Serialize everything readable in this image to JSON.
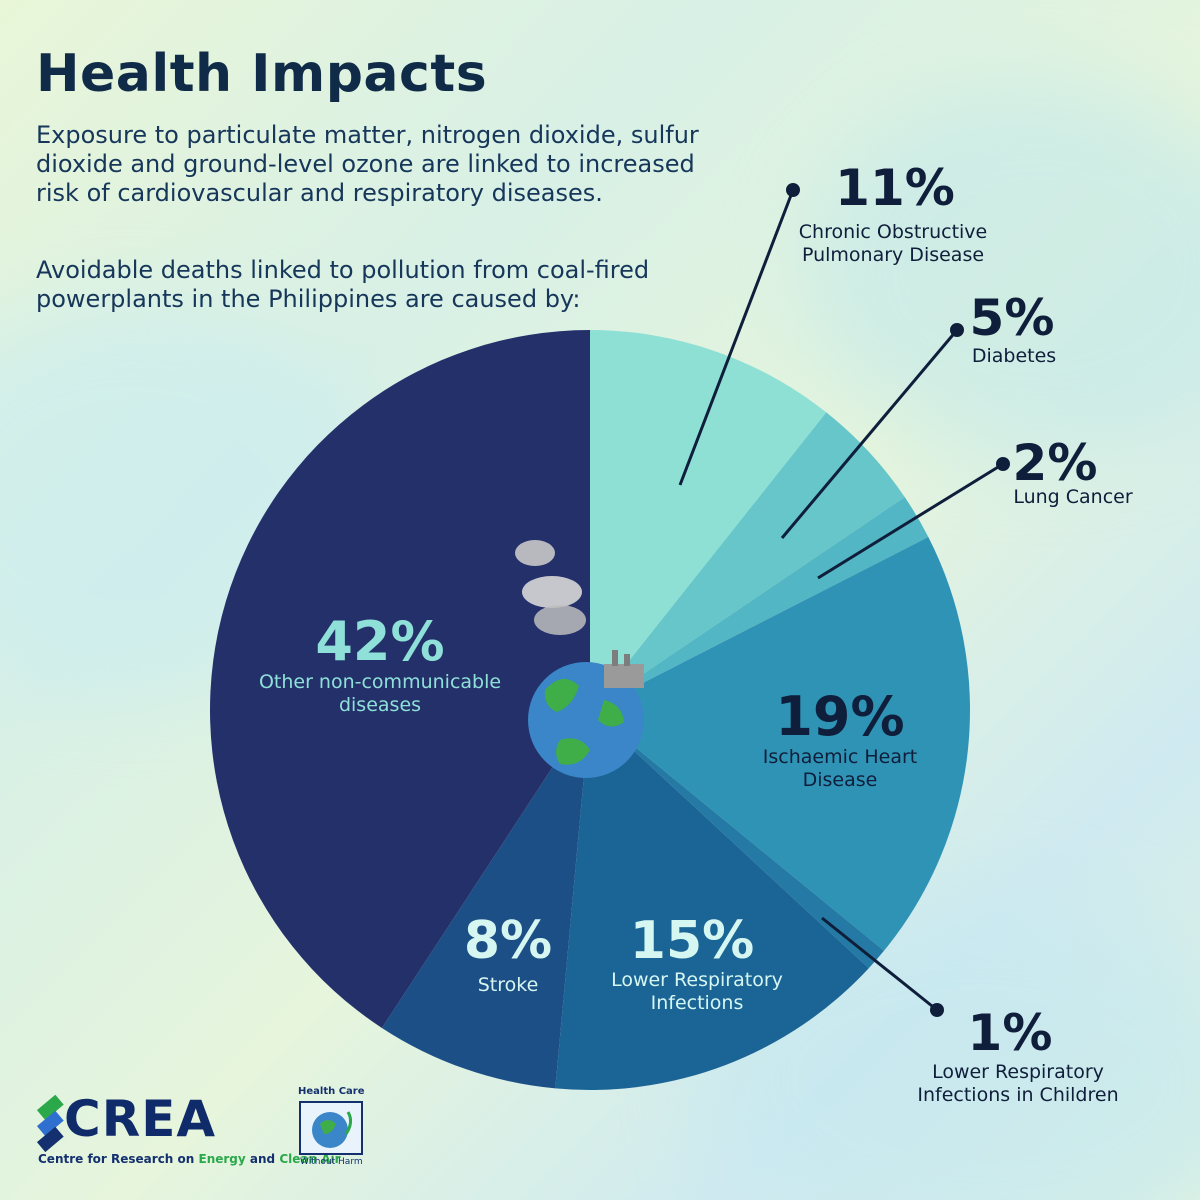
{
  "title": "Health Impacts",
  "intro": "Exposure to particulate matter, nitrogen dioxide, sulfur dioxide and ground-level ozone are linked to increased risk of cardiovascular and respiratory diseases.",
  "lead": "Avoidable deaths linked to pollution from coal-fired powerplants in the Philippines are caused by:",
  "chart_data": {
    "type": "pie",
    "start": "12 o'clock, clockwise",
    "slices": [
      {
        "label_lines": [
          "Chronic Obstructive",
          "Pulmonary Disease"
        ],
        "value": 11,
        "display": "11%",
        "color": "#8ee0d5"
      },
      {
        "label_lines": [
          "Diabetes"
        ],
        "value": 5,
        "display": "5%",
        "color": "#66c6c9"
      },
      {
        "label_lines": [
          "Lung Cancer"
        ],
        "value": 2,
        "display": "2%",
        "color": "#52b6c4"
      },
      {
        "label_lines": [
          "Ischaemic Heart",
          "Disease"
        ],
        "value": 19,
        "display": "19%",
        "color": "#2f93b5"
      },
      {
        "label_lines": [
          "Lower Respiratory",
          "Infections in Children"
        ],
        "value": 1,
        "display": "1%",
        "color": "#247aa4"
      },
      {
        "label_lines": [
          "Lower Respiratory",
          "Infections"
        ],
        "value": 15,
        "display": "15%",
        "color": "#1b6596"
      },
      {
        "label_lines": [
          "Stroke"
        ],
        "value": 8,
        "display": "8%",
        "color": "#1d4f87"
      },
      {
        "label_lines": [
          "Other non-communicable",
          "diseases"
        ],
        "value": 42,
        "display": "42%",
        "color": "#24306a"
      }
    ]
  },
  "logos": {
    "crea": {
      "name": "CREA",
      "tagline_a": "Centre for Research on ",
      "tagline_b": "Energy",
      "tagline_c": " and ",
      "tagline_d": "Clean Air"
    },
    "hcwh": {
      "top": "Health Care",
      "bottom": "Without Harm"
    }
  }
}
